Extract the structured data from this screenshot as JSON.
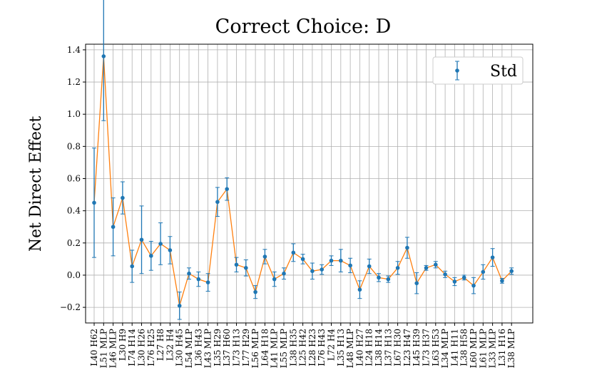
{
  "chart_data": {
    "type": "errorbar",
    "title": "Correct Choice: D",
    "ylabel": "Net Direct Effect",
    "categories": [
      "L40 H62",
      "L51 MLP",
      "L46 MLP",
      "L30 H9",
      "L74 H14",
      "L30 H26",
      "L76 H25",
      "L27 H8",
      "L32 H4",
      "L30 H45",
      "L54 MLP",
      "L36 H43",
      "L43 MLP",
      "L35 H29",
      "L37 H60",
      "L73 H13",
      "L77 H29",
      "L56 MLP",
      "L64 H18",
      "L41 MLP",
      "L55 MLP",
      "L38 H35",
      "L25 H42",
      "L28 H23",
      "L76 H43",
      "L72 H4",
      "L35 H13",
      "L48 MLP",
      "L40 H27",
      "L24 H18",
      "L38 H14",
      "L37 H13",
      "L67 H30",
      "L23 H47",
      "L45 H39",
      "L73 H37",
      "L63 H53",
      "L34 MLP",
      "L41 H11",
      "L38 H58",
      "L60 MLP",
      "L61 MLP",
      "L33 MLP",
      "L31 H16",
      "L38 MLP"
    ],
    "series": [
      {
        "name": "Std",
        "color": "#1f77b4",
        "line_color": "#ff7f0e",
        "values": [
          0.45,
          1.36,
          0.3,
          0.48,
          0.055,
          0.22,
          0.12,
          0.195,
          0.155,
          -0.19,
          0.01,
          -0.025,
          -0.045,
          0.455,
          0.535,
          0.065,
          0.045,
          -0.105,
          0.115,
          -0.025,
          0.01,
          0.14,
          0.1,
          0.025,
          0.035,
          0.09,
          0.09,
          0.06,
          -0.09,
          0.055,
          -0.015,
          -0.025,
          0.045,
          0.17,
          -0.05,
          0.045,
          0.065,
          0.005,
          -0.04,
          -0.015,
          -0.065,
          0.02,
          0.11,
          -0.035,
          0.025
        ],
        "errors": [
          0.34,
          0.4,
          0.18,
          0.1,
          0.1,
          0.21,
          0.09,
          0.13,
          0.085,
          0.085,
          0.035,
          0.045,
          0.055,
          0.09,
          0.07,
          0.045,
          0.05,
          0.04,
          0.045,
          0.045,
          0.035,
          0.055,
          0.03,
          0.05,
          0.03,
          0.03,
          0.07,
          0.045,
          0.055,
          0.045,
          0.025,
          0.02,
          0.04,
          0.065,
          0.065,
          0.015,
          0.02,
          0.02,
          0.025,
          0.015,
          0.05,
          0.045,
          0.055,
          0.015,
          0.02
        ]
      }
    ],
    "ylim": [
      -0.297,
      1.435
    ],
    "yticks": [
      {
        "value": -0.2,
        "label": "−0.2"
      },
      {
        "value": 0,
        "label": "0.0"
      },
      0.2,
      0.4,
      0.6,
      0.8,
      {
        "value": 1,
        "label": "1.0"
      },
      1.2,
      1.4
    ],
    "grid": true,
    "legend": "upper right"
  }
}
